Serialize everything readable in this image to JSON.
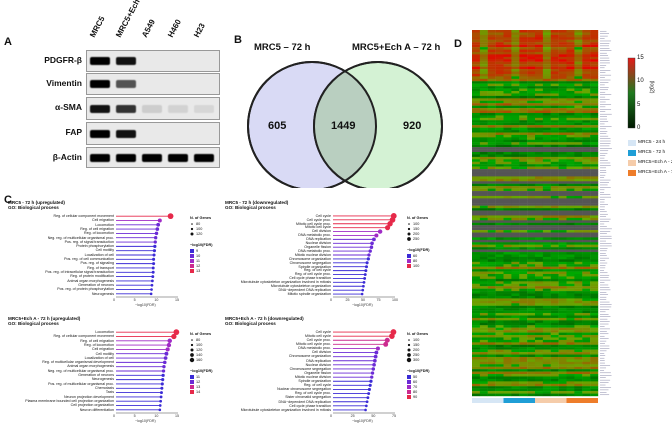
{
  "panels": {
    "a": "A",
    "b": "B",
    "c": "C",
    "d": "D"
  },
  "panel_a": {
    "columns": [
      "MRC5",
      "MRC5+Ech A",
      "A549",
      "H460",
      "H23"
    ],
    "rows": [
      "PDGFR-β",
      "Vimentin",
      "α-SMA",
      "FAP",
      "β-Actin"
    ],
    "band_intensity": [
      [
        1.0,
        0.95,
        0,
        0,
        0
      ],
      [
        1.0,
        0.75,
        0,
        0,
        0
      ],
      [
        0.95,
        0.85,
        0.25,
        0.22,
        0.2
      ],
      [
        1.0,
        0.95,
        0,
        0,
        0
      ],
      [
        1.0,
        1.0,
        1.0,
        1.0,
        1.0
      ]
    ]
  },
  "panel_b": {
    "left_label": "MRC5 – 72 h",
    "right_label": "MRC5+Ech A – 72 h",
    "left_only": "605",
    "overlap": "1449",
    "right_only": "920",
    "left_color": "#d9daf5",
    "right_color": "#d4f2d4"
  },
  "panel_c": [
    {
      "title": "MRC5 - 72 h (upregulated)",
      "subtitle": "GO: Biological process",
      "xlabel": "−log10(FDR)",
      "xlim": [
        0,
        15
      ],
      "ticks": [
        "0",
        "5",
        "10",
        "15"
      ],
      "size_legend_title": "N. of Genes",
      "size_legend": [
        "80",
        "100",
        "120"
      ],
      "color_legend_title": "−log10(FDR)",
      "color_legend": [
        "9",
        "10",
        "11",
        "12",
        "13"
      ],
      "terms": [
        "Reg. of cellular component movement",
        "Cell migration",
        "Locomotion",
        "Reg. of cell migration",
        "Reg. of locomotion",
        "Neg. reg. of multicellular organismal proc.",
        "Pos. reg. of signal transduction",
        "Protein phosphorylation",
        "Cell motility",
        "Localization of cell",
        "Pos. reg. of cell communication",
        "Pos. reg. of signaling",
        "Reg. of transport",
        "Pos. reg. of intracellular signal transduction",
        "Reg. of protein modification",
        "Animal organ morphogenesis",
        "Generation of neurons",
        "Pos. reg. of protein phosphorylation",
        "Neurogenesis"
      ],
      "values": [
        13.2,
        10.6,
        10.2,
        10.0,
        9.8,
        9.6,
        9.5,
        9.4,
        9.3,
        9.2,
        9.1,
        9.1,
        9.0,
        9.0,
        8.9,
        8.8,
        8.7,
        8.6,
        8.5
      ]
    },
    {
      "title": "MRC5 - 72 h (downregulated)",
      "subtitle": "GO: Biological process",
      "xlabel": "−log10(FDR)",
      "xlim": [
        0,
        100
      ],
      "ticks": [
        "0",
        "25",
        "50",
        "75",
        "100"
      ],
      "size_legend_title": "N. of Genes",
      "size_legend": [
        "100",
        "150",
        "200",
        "250"
      ],
      "color_legend_title": "−log10(FDR)",
      "color_legend": [
        "60",
        "80",
        "100"
      ],
      "terms": [
        "Cell cycle",
        "Cell cycle proc.",
        "Mitotic cell cycle proc.",
        "Mitotic cell cycle",
        "Cell division",
        "DNA metabolic proc.",
        "DNA replication",
        "Nuclear division",
        "Organelle fission",
        "DNA metabolic proc.",
        "Mitotic nuclear division",
        "Chromosome organization",
        "Chromosome segregation",
        "Spindle organization",
        "Reg. of cell cycle",
        "Reg. of cell cycle proc.",
        "Cell cycle phase transition",
        "Microtubule cytoskeleton organization involved in mitosis",
        "Microtubule cytoskeleton organization",
        "DNA−dependent DNA replication",
        "Mitotic spindle organization"
      ],
      "values": [
        98,
        96,
        92,
        88,
        76,
        70,
        66,
        63,
        62,
        60,
        58,
        57,
        55,
        54,
        53,
        52,
        51,
        50,
        49,
        48,
        47
      ]
    },
    {
      "title": "MRC5+Ech A - 72 h (upregulated)",
      "subtitle": "GO: Biological process",
      "xlabel": "−log10(FDR)",
      "xlim": [
        0,
        15
      ],
      "ticks": [
        "0",
        "5",
        "10",
        "15"
      ],
      "size_legend_title": "N. of Genes",
      "size_legend": [
        "80",
        "100",
        "120",
        "140",
        "160"
      ],
      "color_legend_title": "−log10(FDR)",
      "color_legend": [
        "11",
        "12",
        "13",
        "14"
      ],
      "terms": [
        "Locomotion",
        "Reg. of cellular component movement",
        "Reg. of cell migration",
        "Reg. of locomotion",
        "Cell migration",
        "Cell motility",
        "Localization of cell",
        "Reg. of multicellular organismal development",
        "Animal organ morphogenesis",
        "Neg. reg. of multicellular organismal proc.",
        "Generation of neurons",
        "Neurogenesis",
        "Pos. reg. of multicellular organismal proc.",
        "Chemotaxis",
        "Taxis",
        "Neuron projection development",
        "Plasma membrane bounded cell projection organization",
        "Cell projection organization",
        "Neuron differentiation"
      ],
      "values": [
        14.6,
        14.0,
        13.0,
        12.8,
        12.5,
        12.2,
        12.0,
        11.8,
        11.6,
        11.5,
        11.4,
        11.3,
        11.2,
        11.1,
        11.0,
        10.9,
        10.8,
        10.7,
        10.6
      ]
    },
    {
      "title": "MRC5+Ech A - 72 h (downregulated)",
      "subtitle": "GO: Biological process",
      "xlabel": "−log10(FDR)",
      "xlim": [
        0,
        80
      ],
      "ticks": [
        "0",
        "25",
        "50",
        "75"
      ],
      "size_legend_title": "N. of Genes",
      "size_legend": [
        "100",
        "150",
        "200",
        "250",
        "300"
      ],
      "color_legend_title": "−log10(FDR)",
      "color_legend": [
        "50",
        "60",
        "70",
        "80",
        "90"
      ],
      "terms": [
        "Cell cycle",
        "Mitotic cell cycle",
        "Cell cycle proc.",
        "Mitotic cell cycle proc.",
        "DNA metabolic proc.",
        "Cell division",
        "Chromosome organization",
        "DNA replication",
        "Nuclear division",
        "Chromosome segregation",
        "Organelle fission",
        "Mitotic nuclear division",
        "Spindle organization",
        "Reg. of cell cycle",
        "Nuclear chromosome segregation",
        "Reg. of cell cycle proc.",
        "Sister chromatid segregation",
        "DNA−dependent DNA replication",
        "Cell cycle phase transition",
        "Microtubule cytoskeleton organization involved in mitosis"
      ],
      "values": [
        78,
        76,
        70,
        68,
        58,
        56,
        55,
        54,
        53,
        52,
        51,
        50,
        49,
        48,
        47,
        46,
        45,
        44,
        43,
        42
      ]
    }
  ],
  "panel_d": {
    "colorbar_title": "(log2)",
    "colorbar_ticks": [
      "15",
      "10",
      "5",
      "0"
    ],
    "legend": [
      {
        "label": "MRC5 - 24 h",
        "color": "#d6e6f5"
      },
      {
        "label": "MRC5 - 72 h",
        "color": "#1f9ed6"
      },
      {
        "label": "MRC5+Ech A - 24 h",
        "color": "#f5ccaa"
      },
      {
        "label": "MRC5+Ech A - 72 h",
        "color": "#ee7d2a"
      }
    ],
    "column_groups": [
      "#d6e6f5",
      "#1f9ed6",
      "#f5ccaa",
      "#ee7d2a"
    ]
  }
}
